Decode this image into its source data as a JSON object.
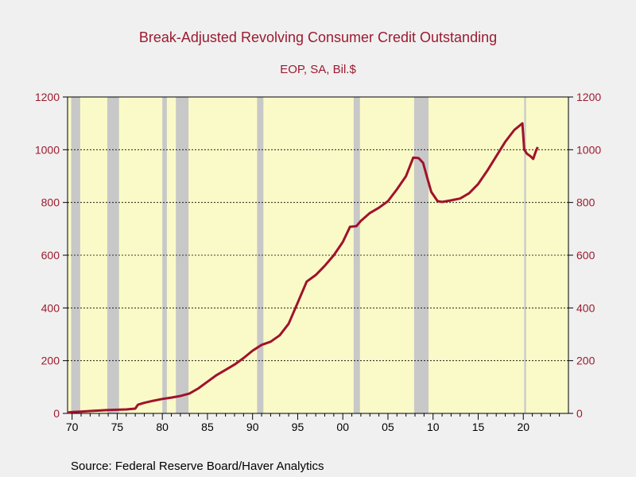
{
  "chart_data": {
    "type": "line",
    "title": "Break-Adjusted Revolving Consumer Credit Outstanding",
    "subtitle": "EOP, SA, Bil.$",
    "source": "Source:  Federal Reserve Board/Haver Analytics",
    "ylim": [
      0,
      1200
    ],
    "xlim": [
      1969.5,
      2025.0
    ],
    "y_ticks": [
      0,
      200,
      400,
      600,
      800,
      1000,
      1200
    ],
    "x_ticks": [
      {
        "year": 1970,
        "label": "70"
      },
      {
        "year": 1975,
        "label": "75"
      },
      {
        "year": 1980,
        "label": "80"
      },
      {
        "year": 1985,
        "label": "85"
      },
      {
        "year": 1990,
        "label": "90"
      },
      {
        "year": 1995,
        "label": "95"
      },
      {
        "year": 2000,
        "label": "00"
      },
      {
        "year": 2005,
        "label": "05"
      },
      {
        "year": 2010,
        "label": "10"
      },
      {
        "year": 2015,
        "label": "15"
      },
      {
        "year": 2020,
        "label": "20"
      }
    ],
    "grid": "horizontal dotted",
    "recessions": [
      [
        1969.9,
        1970.9
      ],
      [
        1973.9,
        1975.2
      ],
      [
        1980.0,
        1980.5
      ],
      [
        1981.5,
        1982.9
      ],
      [
        1990.5,
        1991.2
      ],
      [
        2001.2,
        2001.9
      ],
      [
        2007.9,
        2009.5
      ],
      [
        2020.1,
        2020.3
      ]
    ],
    "series": [
      {
        "color": "#a0122b",
        "x": [
          1969.5,
          1970,
          1971,
          1972,
          1973,
          1974,
          1975,
          1976,
          1977,
          1977.3,
          1978,
          1979,
          1980,
          1981,
          1982,
          1983,
          1984,
          1985,
          1986,
          1987,
          1988,
          1989,
          1990,
          1991,
          1992,
          1993,
          1994,
          1995,
          1996,
          1997,
          1998,
          1999,
          2000,
          2000.8,
          2001.5,
          2002,
          2003,
          2004,
          2005,
          2006,
          2007,
          2007.8,
          2008.4,
          2008.9,
          2009.3,
          2009.8,
          2010.5,
          2011,
          2012,
          2013,
          2014,
          2015,
          2016,
          2017,
          2018,
          2019,
          2019.9,
          2020.1,
          2020.4,
          2020.8,
          2021.1,
          2021.4,
          2021.6
        ],
        "values": [
          3,
          5,
          7,
          9,
          11,
          13,
          14,
          15,
          18,
          33,
          40,
          48,
          55,
          60,
          66,
          75,
          95,
          120,
          145,
          165,
          185,
          210,
          238,
          260,
          272,
          296,
          340,
          420,
          500,
          525,
          560,
          600,
          650,
          708,
          710,
          730,
          760,
          780,
          805,
          850,
          900,
          970,
          968,
          950,
          900,
          840,
          805,
          802,
          808,
          815,
          835,
          870,
          920,
          975,
          1030,
          1075,
          1100,
          1000,
          985,
          975,
          965,
          995,
          1010
        ]
      }
    ]
  }
}
